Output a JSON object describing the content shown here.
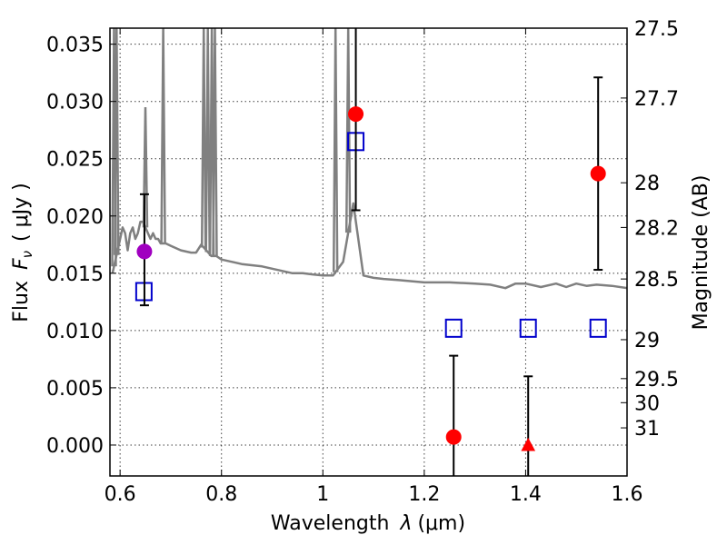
{
  "chart_data": {
    "type": "scatter",
    "xlabel_prefix": "Wavelength",
    "xlabel_symbol": "λ",
    "xlabel_unit": "(μm)",
    "ylabel_prefix": "Flux",
    "ylabel_symbol": "F",
    "ylabel_sub": "ν",
    "ylabel_unit": "( μJy )",
    "y2label": "Magnitude (AB)",
    "xlim": [
      0.58,
      1.6
    ],
    "ylim": [
      -0.0027,
      0.0364
    ],
    "grid": true,
    "x_ticks": [
      {
        "value": 0.6,
        "label": "0.6"
      },
      {
        "value": 0.8,
        "label": "0.8"
      },
      {
        "value": 1.0,
        "label": "1"
      },
      {
        "value": 1.2,
        "label": "1.2"
      },
      {
        "value": 1.4,
        "label": "1.4"
      },
      {
        "value": 1.6,
        "label": "1.6"
      }
    ],
    "y_ticks": [
      {
        "value": 0.0,
        "label": "0.000"
      },
      {
        "value": 0.005,
        "label": "0.005"
      },
      {
        "value": 0.01,
        "label": "0.010"
      },
      {
        "value": 0.015,
        "label": "0.015"
      },
      {
        "value": 0.02,
        "label": "0.020"
      },
      {
        "value": 0.025,
        "label": "0.025"
      },
      {
        "value": 0.03,
        "label": "0.030"
      },
      {
        "value": 0.035,
        "label": "0.035"
      }
    ],
    "y2_ticks": [
      {
        "flux": 0.0364,
        "label": "27.5"
      },
      {
        "flux": 0.0303,
        "label": "27.7"
      },
      {
        "flux": 0.0229,
        "label": "28"
      },
      {
        "flux": 0.019,
        "label": "28.2"
      },
      {
        "flux": 0.0145,
        "label": "28.5"
      },
      {
        "flux": 0.0092,
        "label": "29"
      },
      {
        "flux": 0.0058,
        "label": "29.5"
      },
      {
        "flux": 0.0037,
        "label": "30"
      },
      {
        "flux": 0.0015,
        "label": "31"
      }
    ],
    "colors": {
      "model": "#808080",
      "detection": "#ff0000",
      "special": "#a000c0",
      "predicted": "#0000cc",
      "errorbar": "#000000"
    },
    "model_spectrum": {
      "name": "",
      "x": [
        0.585,
        0.59,
        0.595,
        0.6,
        0.605,
        0.61,
        0.615,
        0.62,
        0.625,
        0.63,
        0.635,
        0.64,
        0.645,
        0.65,
        0.655,
        0.66,
        0.665,
        0.67,
        0.675,
        0.68,
        0.685,
        0.69,
        0.7,
        0.71,
        0.72,
        0.73,
        0.74,
        0.75,
        0.76,
        0.77,
        0.78,
        0.79,
        0.8,
        0.82,
        0.84,
        0.86,
        0.88,
        0.9,
        0.92,
        0.94,
        0.96,
        0.98,
        1.0,
        1.02,
        1.04,
        1.06,
        1.08,
        1.1,
        1.12,
        1.15,
        1.2,
        1.25,
        1.3,
        1.33,
        1.36,
        1.38,
        1.4,
        1.43,
        1.46,
        1.48,
        1.5,
        1.52,
        1.54,
        1.57,
        1.6
      ],
      "y": [
        0.015,
        0.016,
        0.017,
        0.018,
        0.019,
        0.0185,
        0.017,
        0.0185,
        0.019,
        0.018,
        0.0185,
        0.0195,
        0.0195,
        0.019,
        0.0185,
        0.018,
        0.0185,
        0.018,
        0.018,
        0.0176,
        0.0176,
        0.0176,
        0.0174,
        0.0172,
        0.017,
        0.0169,
        0.0168,
        0.0168,
        0.0175,
        0.017,
        0.0165,
        0.0165,
        0.0162,
        0.016,
        0.0158,
        0.0157,
        0.0156,
        0.0154,
        0.0152,
        0.015,
        0.015,
        0.0149,
        0.0148,
        0.0148,
        0.016,
        0.0211,
        0.0148,
        0.0146,
        0.0145,
        0.0144,
        0.0142,
        0.0142,
        0.0141,
        0.014,
        0.0137,
        0.0141,
        0.0141,
        0.0138,
        0.0141,
        0.0138,
        0.0141,
        0.0139,
        0.014,
        0.0139,
        0.0137
      ],
      "spikes": [
        {
          "x": 0.588,
          "y": 0.0364
        },
        {
          "x": 0.593,
          "y": 0.0364
        },
        {
          "x": 0.65,
          "y": 0.0295
        },
        {
          "x": 0.685,
          "y": 0.0364
        },
        {
          "x": 0.765,
          "y": 0.0364
        },
        {
          "x": 0.773,
          "y": 0.0364
        },
        {
          "x": 0.781,
          "y": 0.0364
        },
        {
          "x": 0.787,
          "y": 0.0364
        },
        {
          "x": 1.025,
          "y": 0.0364
        },
        {
          "x": 1.05,
          "y": 0.0364
        }
      ]
    },
    "detections": [
      {
        "x": 1.065,
        "y": 0.0289,
        "yerr_low": 0.0205,
        "yerr_high": 0.0364
      },
      {
        "x": 1.258,
        "y": 0.0007,
        "yerr_low": -0.0027,
        "yerr_high": 0.0078
      },
      {
        "x": 1.543,
        "y": 0.0237,
        "yerr_low": 0.0153,
        "yerr_high": 0.0321
      }
    ],
    "special_point": {
      "x": 0.648,
      "y": 0.0169,
      "yerr_low": 0.0122,
      "yerr_high": 0.0219
    },
    "upper_limit": {
      "x": 1.405,
      "y": 0.0,
      "yerr_low": -0.0027,
      "yerr_high": 0.006
    },
    "predicted": [
      {
        "x": 0.647,
        "y": 0.0134
      },
      {
        "x": 1.065,
        "y": 0.0265
      },
      {
        "x": 1.258,
        "y": 0.0102
      },
      {
        "x": 1.405,
        "y": 0.0102
      },
      {
        "x": 1.543,
        "y": 0.0102
      }
    ]
  }
}
